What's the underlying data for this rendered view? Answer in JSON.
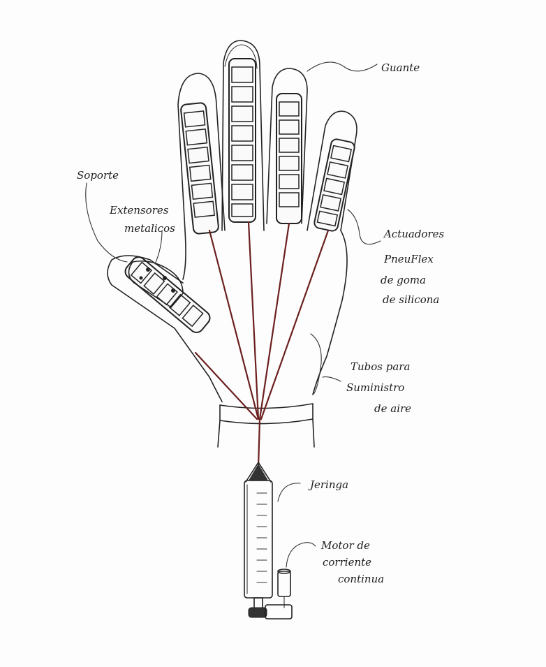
{
  "labels": {
    "guante": "Guante",
    "soporte": "Soporte",
    "extensores_1": "Extensores",
    "extensores_2": "metalicos",
    "actuadores_1": "Actuadores",
    "actuadores_2": "PneuFlex",
    "actuadores_3": "de goma",
    "actuadores_4": "de silicona",
    "tubos_1": "Tubos para",
    "tubos_2": "Suministro",
    "tubos_3": "de aire",
    "jeringa": "Jeringa",
    "motor_1": "Motor de",
    "motor_2": "corriente",
    "motor_3": "continua"
  },
  "colors": {
    "ink": "#222222",
    "tube": "#6b1f1f",
    "paper": "#fdfdfd"
  }
}
